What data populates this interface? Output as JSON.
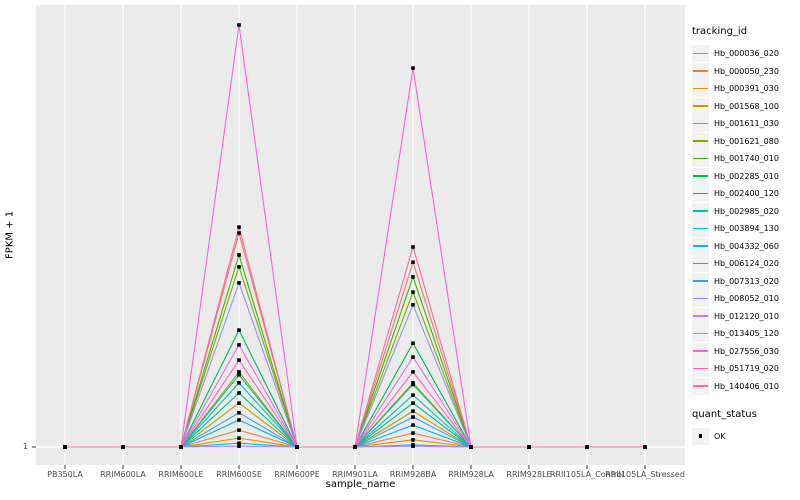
{
  "chart_data": {
    "type": "line",
    "x_axis": {
      "label": "sample_name",
      "categories": [
        "PB350LA",
        "RRIM600LA",
        "RRIM600LE",
        "RRIM600SE",
        "RRIM600PE",
        "RRIM901LA",
        "RRIM928BA",
        "RRIM928LA",
        "RRIM928LE",
        "RRII105LA_Control",
        "RRII105LA_Stressed"
      ]
    },
    "y_axis": {
      "label": "FPKM + 1",
      "tick_labels": [
        "1"
      ],
      "baseline_value": 1,
      "scale_note": "only the tick '1' is labeled; series peak heights are estimated as fraction of panel height above the baseline"
    },
    "legend": {
      "tracking_title": "tracking_id",
      "quant_title": "quant_status",
      "quant_items": [
        {
          "label": "OK",
          "marker": "black-square"
        }
      ]
    },
    "marker_color": "#000000",
    "panel": {
      "background": "#ebebeb",
      "gridline": "#ffffff"
    },
    "series": [
      {
        "name": "Hb_000036_020",
        "color": "#F8766D",
        "values_frac": [
          0,
          0,
          0,
          0.507,
          0,
          0,
          0.438,
          0,
          0,
          0,
          0
        ]
      },
      {
        "name": "Hb_000050_230",
        "color": "#EA8331",
        "values_frac": [
          0,
          0,
          0,
          0.04,
          0,
          0,
          0.033,
          0,
          0,
          0,
          0
        ]
      },
      {
        "name": "Hb_000391_030",
        "color": "#D89000",
        "values_frac": [
          0,
          0,
          0,
          0.021,
          0,
          0,
          0.017,
          0,
          0,
          0,
          0
        ]
      },
      {
        "name": "Hb_001568_100",
        "color": "#C09B00",
        "values_frac": [
          0,
          0,
          0,
          0.104,
          0,
          0,
          0.085,
          0,
          0,
          0,
          0
        ]
      },
      {
        "name": "Hb_001611_030",
        "color": "#A3A500",
        "values_frac": [
          0,
          0,
          0,
          0.178,
          0,
          0,
          0.152,
          0,
          0,
          0,
          0
        ]
      },
      {
        "name": "Hb_001621_080",
        "color": "#7CAE00",
        "values_frac": [
          0,
          0,
          0,
          0.427,
          0,
          0,
          0.367,
          0,
          0,
          0,
          0
        ]
      },
      {
        "name": "Hb_001740_010",
        "color": "#39B600",
        "values_frac": [
          0,
          0,
          0,
          0.455,
          0,
          0,
          0.403,
          0,
          0,
          0,
          0
        ]
      },
      {
        "name": "Hb_002285_010",
        "color": "#00BB4E",
        "values_frac": [
          0,
          0,
          0,
          0.277,
          0,
          0,
          0.246,
          0,
          0,
          0,
          0
        ]
      },
      {
        "name": "Hb_002400_120",
        "color": "#00BF7D",
        "values_frac": [
          0,
          0,
          0,
          0.128,
          0,
          0,
          0.104,
          0,
          0,
          0,
          0
        ]
      },
      {
        "name": "Hb_002985_020",
        "color": "#00C1A3",
        "values_frac": [
          0,
          0,
          0,
          0.171,
          0,
          0,
          0.148,
          0,
          0,
          0,
          0
        ]
      },
      {
        "name": "Hb_003894_130",
        "color": "#00BFC4",
        "values_frac": [
          0,
          0,
          0,
          0.152,
          0,
          0,
          0.123,
          0,
          0,
          0,
          0
        ]
      },
      {
        "name": "Hb_004332_060",
        "color": "#00BAE0",
        "values_frac": [
          0,
          0,
          0,
          0.009,
          0,
          0,
          0.005,
          0,
          0,
          0,
          0
        ]
      },
      {
        "name": "Hb_006124_020",
        "color": "#00B0F6",
        "values_frac": [
          0,
          0,
          0,
          0.064,
          0,
          0,
          0.052,
          0,
          0,
          0,
          0
        ]
      },
      {
        "name": "Hb_007313_020",
        "color": "#35A2FF",
        "values_frac": [
          0,
          0,
          0,
          0.081,
          0,
          0,
          0.071,
          0,
          0,
          0,
          0
        ]
      },
      {
        "name": "Hb_008052_010",
        "color": "#9590FF",
        "values_frac": [
          0,
          0,
          0,
          0.389,
          0,
          0,
          0.337,
          0,
          0,
          0,
          0
        ]
      },
      {
        "name": "Hb_012120_010",
        "color": "#C77CFF",
        "values_frac": [
          0,
          0,
          0,
          0.002,
          0,
          0,
          0.002,
          0,
          0,
          0,
          0
        ]
      },
      {
        "name": "Hb_013405_120",
        "color": "#E76BF3",
        "values_frac": [
          0,
          0,
          0,
          0.242,
          0,
          0,
          0.213,
          0,
          0,
          0,
          0
        ]
      },
      {
        "name": "Hb_027556_030",
        "color": "#FA62DB",
        "values_frac": [
          0,
          0,
          0,
          1.0,
          0,
          0,
          0.898,
          0,
          0,
          0,
          0
        ]
      },
      {
        "name": "Hb_051719_020",
        "color": "#FF62BC",
        "values_frac": [
          0,
          0,
          0,
          0.206,
          0,
          0,
          0.178,
          0,
          0,
          0,
          0
        ]
      },
      {
        "name": "Hb_140406_010",
        "color": "#FF6A98",
        "values_frac": [
          0,
          0,
          0,
          0.521,
          0,
          0,
          0.474,
          0,
          0,
          0,
          0
        ]
      }
    ]
  }
}
